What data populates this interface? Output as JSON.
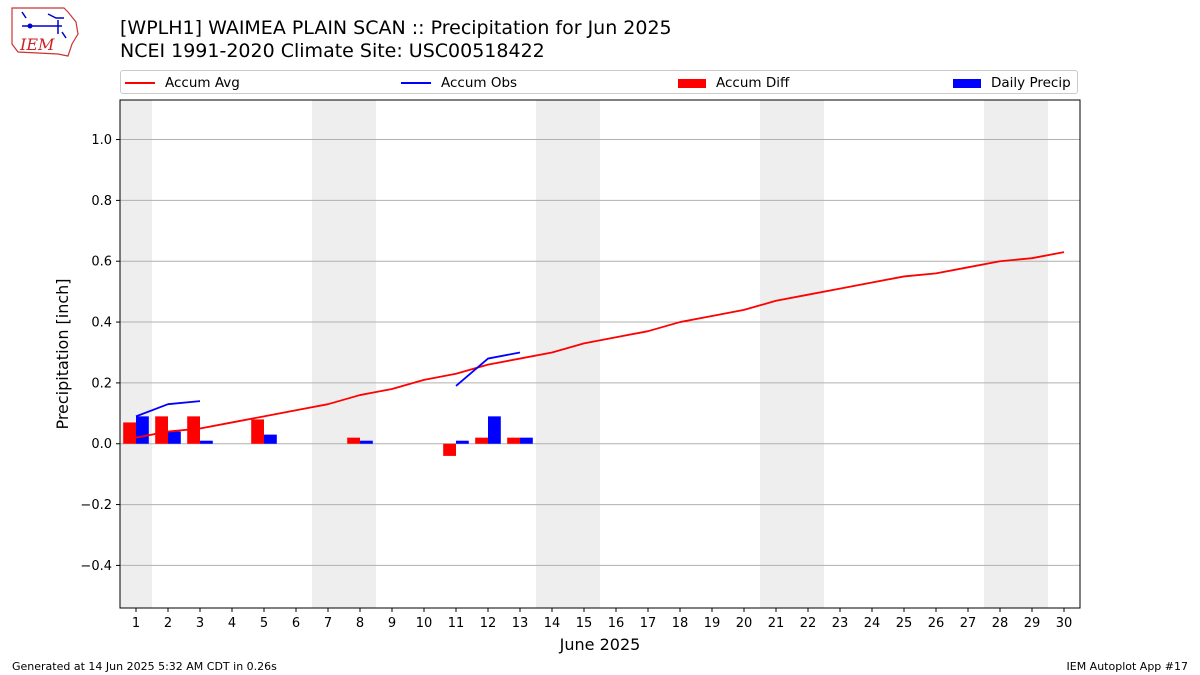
{
  "header": {
    "title_line1": "[WPLH1] WAIMEA PLAIN SCAN :: Precipitation for Jun 2025",
    "title_line2": "NCEI 1991-2020 Climate Site: USC00518422",
    "logo_text": "IEM"
  },
  "legend": {
    "accum_avg": "Accum Avg",
    "accum_obs": "Accum Obs",
    "accum_diff": "Accum Diff",
    "daily_precip": "Daily Precip"
  },
  "footer": {
    "generated": "Generated at 14 Jun 2025 5:32 AM CDT in 0.26s",
    "app": "IEM Autoplot App #17"
  },
  "colors": {
    "accum_avg": "#ff0000",
    "accum_obs": "#0000ff",
    "accum_diff": "#ff0000",
    "daily_precip": "#0000ff",
    "weekend_shade": "#eeeeee",
    "grid": "#b0b0b0"
  },
  "chart_data": {
    "type": "bar",
    "xlabel": "June 2025",
    "ylabel": "Precipitation [inch]",
    "xlim": [
      0.5,
      30.5
    ],
    "ylim": [
      -0.54,
      1.13
    ],
    "x": [
      1,
      2,
      3,
      4,
      5,
      6,
      7,
      8,
      9,
      10,
      11,
      12,
      13,
      14,
      15,
      16,
      17,
      18,
      19,
      20,
      21,
      22,
      23,
      24,
      25,
      26,
      27,
      28,
      29,
      30
    ],
    "x_tick_labels": [
      "1",
      "2",
      "3",
      "4",
      "5",
      "6",
      "7",
      "8",
      "9",
      "10",
      "11",
      "12",
      "13",
      "14",
      "15",
      "16",
      "17",
      "18",
      "19",
      "20",
      "21",
      "22",
      "23",
      "24",
      "25",
      "26",
      "27",
      "28",
      "29",
      "30"
    ],
    "y_ticks": [
      -0.4,
      -0.2,
      0.0,
      0.2,
      0.4,
      0.6,
      0.8,
      1.0
    ],
    "y_tick_labels": [
      "−0.4",
      "−0.2",
      "0.0",
      "0.2",
      "0.4",
      "0.6",
      "0.8",
      "1.0"
    ],
    "grid": "horizontal",
    "legend_position": "top",
    "weekend_days": [
      1,
      7,
      8,
      14,
      15,
      21,
      22,
      28,
      29
    ],
    "series": [
      {
        "name": "Accum Avg",
        "kind": "line",
        "values": [
          0.02,
          0.04,
          0.05,
          0.07,
          0.09,
          0.11,
          0.13,
          0.16,
          0.18,
          0.21,
          0.23,
          0.26,
          0.28,
          0.3,
          0.33,
          0.35,
          0.37,
          0.4,
          0.42,
          0.44,
          0.47,
          0.49,
          0.51,
          0.53,
          0.55,
          0.56,
          0.58,
          0.6,
          0.61,
          0.63
        ]
      },
      {
        "name": "Accum Obs",
        "kind": "line",
        "values": [
          0.09,
          0.13,
          0.14,
          null,
          null,
          null,
          null,
          null,
          null,
          null,
          0.19,
          0.28,
          0.3,
          null,
          null,
          null,
          null,
          null,
          null,
          null,
          null,
          null,
          null,
          null,
          null,
          null,
          null,
          null,
          null,
          null
        ]
      },
      {
        "name": "Accum Diff",
        "kind": "bar",
        "values": [
          0.07,
          0.09,
          0.09,
          null,
          0.08,
          null,
          null,
          0.02,
          null,
          null,
          -0.04,
          0.02,
          0.02,
          null,
          null,
          null,
          null,
          null,
          null,
          null,
          null,
          null,
          null,
          null,
          null,
          null,
          null,
          null,
          null,
          null
        ]
      },
      {
        "name": "Daily Precip",
        "kind": "bar",
        "values": [
          0.09,
          0.04,
          0.01,
          null,
          0.03,
          null,
          null,
          0.01,
          null,
          null,
          0.01,
          0.09,
          0.02,
          null,
          null,
          null,
          null,
          null,
          null,
          null,
          null,
          null,
          null,
          null,
          null,
          null,
          null,
          null,
          null,
          null
        ]
      }
    ]
  }
}
